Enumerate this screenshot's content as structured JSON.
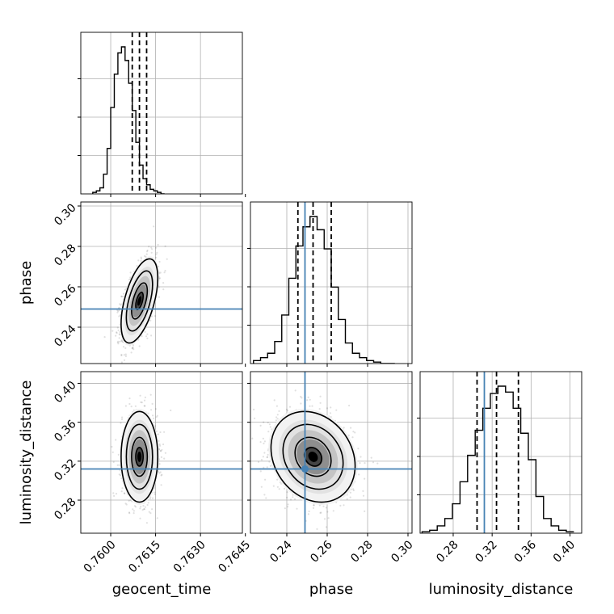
{
  "chart_data": {
    "type": "corner",
    "parameters": [
      "geocent_time",
      "phase",
      "luminosity_distance"
    ],
    "axis_labels": {
      "geocent_time": "geocent_time",
      "phase": "phase",
      "luminosity_distance": "luminosity_distance"
    },
    "ranges": {
      "geocent_time": [
        0.759,
        0.7644
      ],
      "phase": [
        0.222,
        0.302
      ],
      "luminosity_distance": [
        0.246,
        0.412
      ]
    },
    "ticks": {
      "geocent_time": [
        "0.7600",
        "0.7615",
        "0.7630",
        "0.7645"
      ],
      "phase": [
        "0.24",
        "0.26",
        "0.28",
        "0.30"
      ],
      "luminosity_distance": [
        "0.28",
        "0.32",
        "0.36",
        "0.40"
      ]
    },
    "truths": {
      "phase": 0.249,
      "luminosity_distance": 0.312
    },
    "quantiles": {
      "geocent_time": [
        0.76072,
        0.76096,
        0.7612
      ],
      "phase": [
        0.2455,
        0.253,
        0.262
      ],
      "luminosity_distance": [
        0.3045,
        0.3245,
        0.347
      ]
    },
    "grid": true,
    "histograms": {
      "geocent_time": {
        "bin_start": 0.7594,
        "bin_width": 0.00012,
        "counts": [
          1,
          2,
          4,
          13,
          30,
          57,
          79,
          93,
          97,
          88,
          73,
          55,
          34,
          19,
          10,
          6,
          3,
          2,
          1,
          0
        ]
      },
      "phase": {
        "bin_start": 0.2235,
        "bin_width": 0.0035,
        "counts": [
          2,
          4,
          7,
          15,
          33,
          58,
          80,
          93,
          100,
          91,
          78,
          52,
          30,
          14,
          7,
          4,
          2,
          1,
          0,
          0
        ]
      },
      "luminosity_distance": {
        "bin_start": 0.248,
        "bin_width": 0.0078,
        "counts": [
          1,
          2,
          5,
          10,
          20,
          35,
          53,
          70,
          85,
          95,
          100,
          96,
          85,
          68,
          50,
          25,
          10,
          5,
          2,
          1
        ]
      }
    },
    "pair_stats": {
      "geocent_time__phase": {
        "mean": [
          0.76096,
          0.253
        ],
        "sd": [
          0.00025,
          0.0085
        ],
        "rho": 0.55
      },
      "geocent_time__luminosity_distance": {
        "mean": [
          0.76096,
          0.3245
        ],
        "sd": [
          0.00025,
          0.019
        ],
        "rho": 0.0
      },
      "phase__luminosity_distance": {
        "mean": [
          0.253,
          0.3245
        ],
        "sd": [
          0.0085,
          0.019
        ],
        "rho": -0.2
      }
    }
  }
}
